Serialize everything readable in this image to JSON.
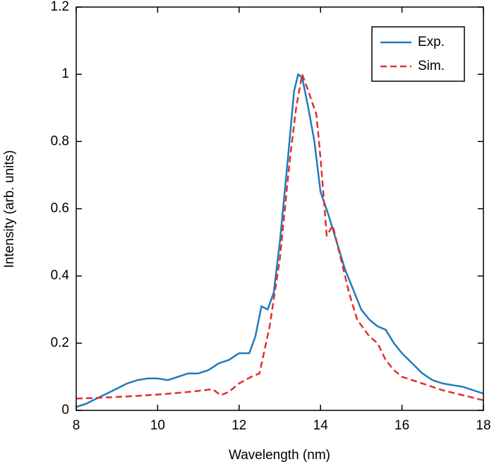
{
  "chart_data": {
    "type": "line",
    "xlabel": "Wavelength (nm)",
    "ylabel": "Intensity (arb. units)",
    "xlim": [
      8,
      18
    ],
    "xticks": [
      8,
      10,
      12,
      14,
      16,
      18
    ],
    "ylim": [
      0,
      1.2
    ],
    "yticks": [
      0,
      0.2,
      0.4,
      0.6,
      0.8,
      1,
      1.2
    ],
    "legend": "upper right",
    "series": [
      {
        "name": "Exp.",
        "color": "#1f7bbf",
        "dash": false,
        "x": [
          8.0,
          8.25,
          8.5,
          8.75,
          9.0,
          9.25,
          9.5,
          9.75,
          10.0,
          10.25,
          10.5,
          10.75,
          11.0,
          11.25,
          11.5,
          11.75,
          12.0,
          12.25,
          12.4,
          12.55,
          12.7,
          12.85,
          13.0,
          13.2,
          13.35,
          13.45,
          13.55,
          13.7,
          13.85,
          14.0,
          14.2,
          14.4,
          14.6,
          14.8,
          15.0,
          15.2,
          15.4,
          15.6,
          15.8,
          16.0,
          16.25,
          16.5,
          16.75,
          17.0,
          17.25,
          17.5,
          17.75,
          18.0
        ],
        "values": [
          0.01,
          0.02,
          0.035,
          0.05,
          0.065,
          0.08,
          0.09,
          0.095,
          0.095,
          0.09,
          0.1,
          0.11,
          0.11,
          0.12,
          0.14,
          0.15,
          0.17,
          0.17,
          0.22,
          0.31,
          0.3,
          0.35,
          0.5,
          0.75,
          0.95,
          1.0,
          0.99,
          0.9,
          0.8,
          0.65,
          0.58,
          0.5,
          0.42,
          0.36,
          0.3,
          0.27,
          0.25,
          0.24,
          0.2,
          0.17,
          0.14,
          0.11,
          0.09,
          0.08,
          0.075,
          0.07,
          0.06,
          0.05
        ]
      },
      {
        "name": "Sim.",
        "color": "#e03030",
        "dash": true,
        "x": [
          8.0,
          8.5,
          9.0,
          9.5,
          10.0,
          10.5,
          11.0,
          11.35,
          11.55,
          11.75,
          12.0,
          12.3,
          12.5,
          12.75,
          13.0,
          13.25,
          13.4,
          13.55,
          13.7,
          13.9,
          14.0,
          14.1,
          14.15,
          14.3,
          14.5,
          14.7,
          14.9,
          15.2,
          15.4,
          15.6,
          15.8,
          16.0,
          16.5,
          17.0,
          17.5,
          18.0
        ],
        "values": [
          0.035,
          0.037,
          0.04,
          0.043,
          0.047,
          0.052,
          0.058,
          0.063,
          0.045,
          0.055,
          0.08,
          0.1,
          0.11,
          0.25,
          0.45,
          0.75,
          0.9,
          1.0,
          0.95,
          0.88,
          0.75,
          0.6,
          0.52,
          0.55,
          0.45,
          0.35,
          0.27,
          0.22,
          0.2,
          0.15,
          0.12,
          0.1,
          0.08,
          0.06,
          0.045,
          0.03
        ]
      }
    ]
  }
}
